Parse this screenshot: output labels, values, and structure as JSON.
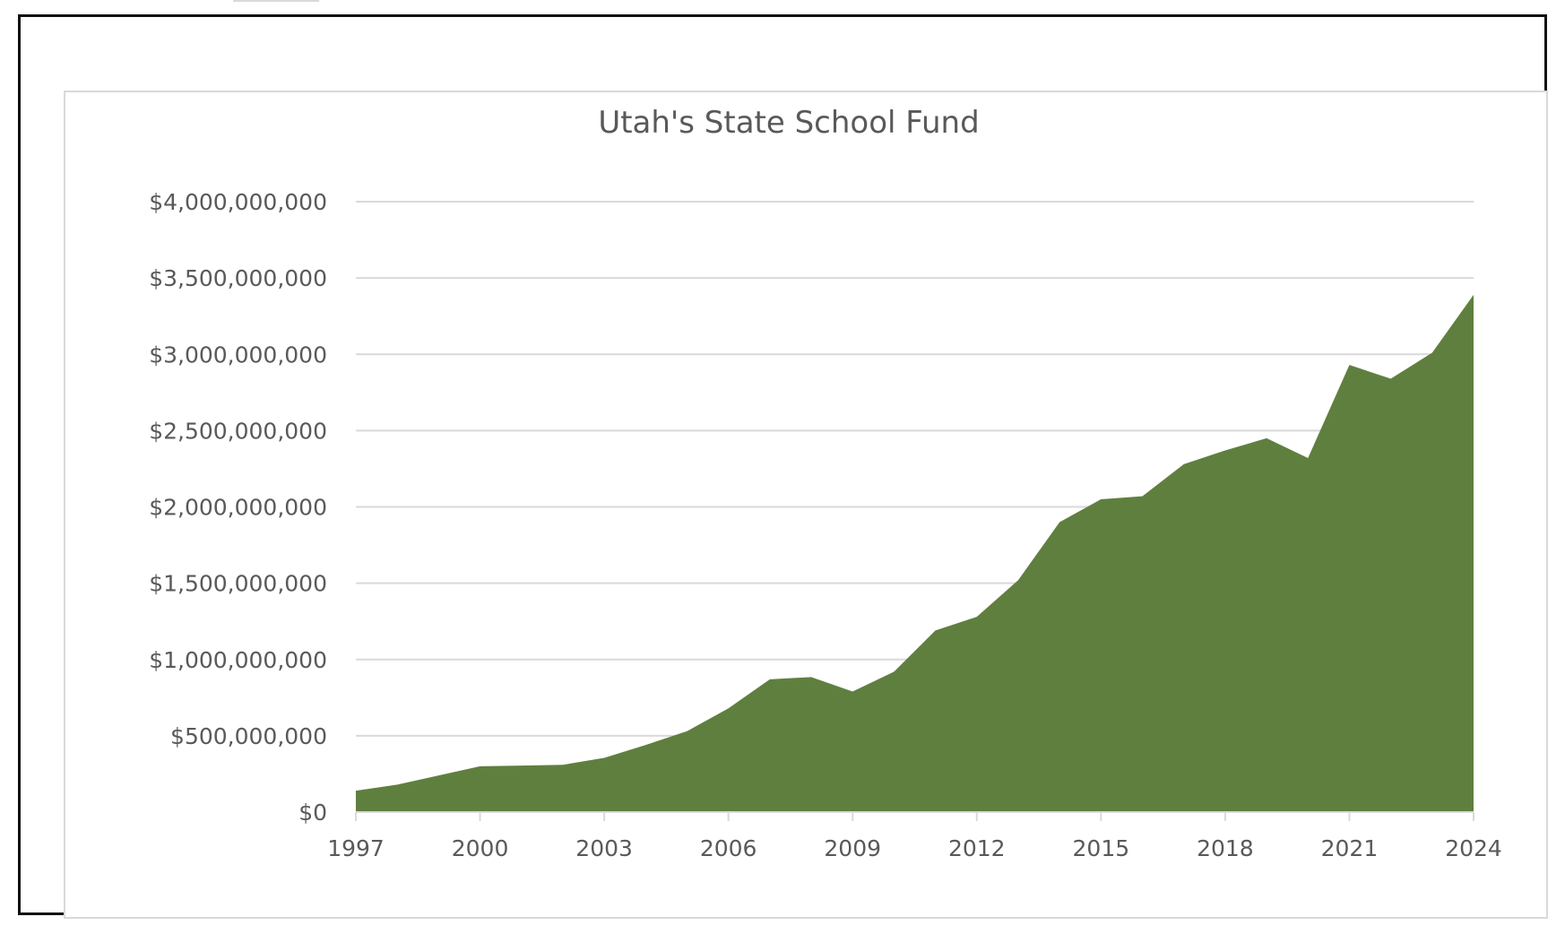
{
  "chart_data": {
    "type": "area",
    "title": "Utah's State School Fund",
    "xlabel": "",
    "ylabel": "",
    "x": [
      1997,
      1998,
      1999,
      2000,
      2001,
      2002,
      2003,
      2004,
      2005,
      2006,
      2007,
      2008,
      2009,
      2010,
      2011,
      2012,
      2013,
      2014,
      2015,
      2016,
      2017,
      2018,
      2019,
      2020,
      2021,
      2022,
      2023,
      2024
    ],
    "series": [
      {
        "name": "",
        "values": [
          140000000,
          180000000,
          240000000,
          300000000,
          305000000,
          310000000,
          355000000,
          440000000,
          530000000,
          680000000,
          870000000,
          885000000,
          790000000,
          920000000,
          1190000000,
          1280000000,
          1520000000,
          1900000000,
          2050000000,
          2070000000,
          2280000000,
          2370000000,
          2450000000,
          2320000000,
          2930000000,
          2840000000,
          3010000000,
          3390000000
        ],
        "color": "#5f7f3f"
      }
    ],
    "xticks": [
      "1997",
      "2000",
      "2003",
      "2006",
      "2009",
      "2012",
      "2015",
      "2018",
      "2021",
      "2024"
    ],
    "xtick_values": [
      1997,
      2000,
      2003,
      2006,
      2009,
      2012,
      2015,
      2018,
      2021,
      2024
    ],
    "yticks": [
      "$0",
      "$500,000,000",
      "$1,000,000,000",
      "$1,500,000,000",
      "$2,000,000,000",
      "$2,500,000,000",
      "$3,000,000,000",
      "$3,500,000,000",
      "$4,000,000,000"
    ],
    "ytick_values": [
      0,
      500000000,
      1000000000,
      1500000000,
      2000000000,
      2500000000,
      3000000000,
      3500000000,
      4000000000
    ],
    "xlim": [
      1997,
      2024
    ],
    "ylim": [
      0,
      4000000000
    ],
    "grid": true,
    "legend": "none",
    "colors": {
      "area": "#5f7f3f",
      "grid": "#d9d9d9",
      "text": "#595959"
    }
  }
}
